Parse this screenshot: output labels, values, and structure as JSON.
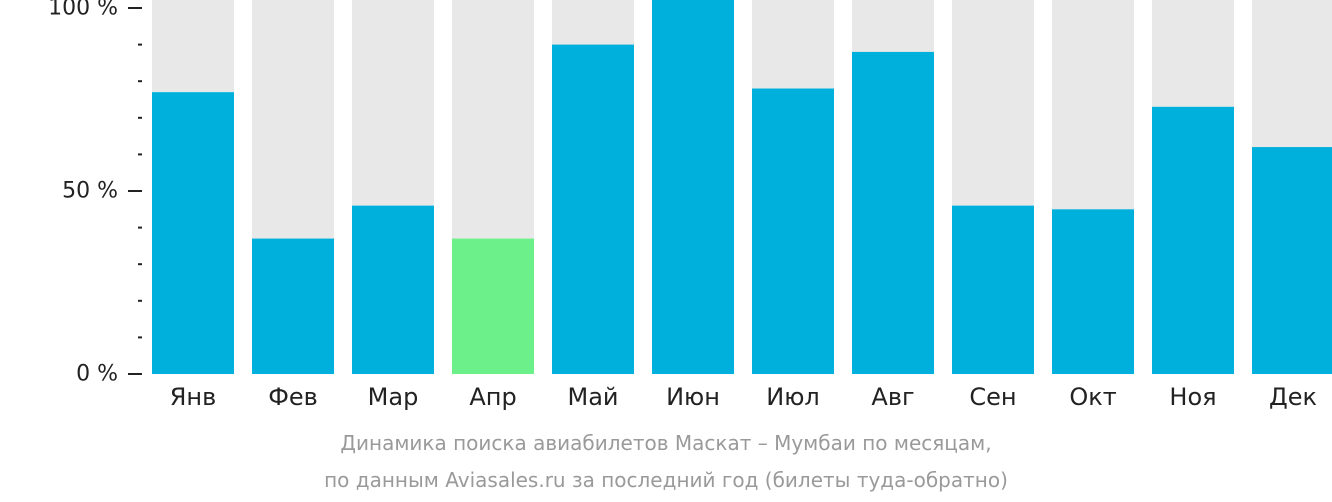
{
  "chart_data": {
    "type": "bar",
    "categories": [
      "Янв",
      "Фев",
      "Мар",
      "Апр",
      "Май",
      "Июн",
      "Июл",
      "Авг",
      "Сен",
      "Окт",
      "Ноя",
      "Дек"
    ],
    "values": [
      77,
      37,
      46,
      37,
      90,
      100,
      78,
      88,
      46,
      45,
      73,
      62
    ],
    "unit": "%",
    "ylim": [
      0,
      100
    ],
    "yticks": [
      {
        "value": 0,
        "label": "0 %"
      },
      {
        "value": 50,
        "label": "50 %"
      },
      {
        "value": 100,
        "label": "100 %"
      }
    ],
    "highlight_index": 3,
    "colors": {
      "bar": "#00b0dc",
      "highlight": "#6cf08a",
      "background_bar": "#e8e8e8",
      "axis": "#222222"
    }
  },
  "caption": {
    "line1": "Динамика поиска авиабилетов Маскат – Мумбаи по месяцам,",
    "line2": "по данным Aviasales.ru за последний год (билеты туда-обратно)"
  }
}
